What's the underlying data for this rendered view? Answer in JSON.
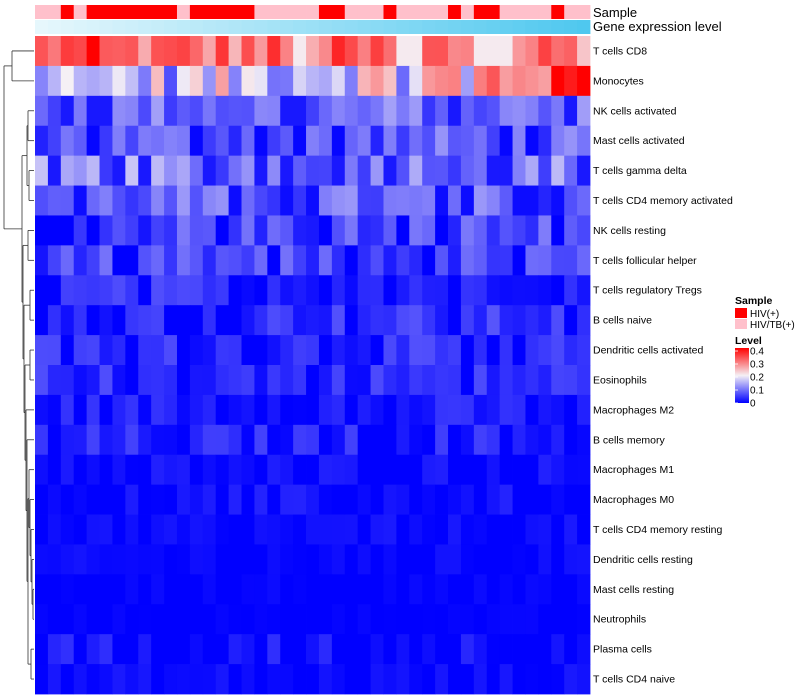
{
  "chart_data": {
    "type": "heatmap",
    "annotations": [
      {
        "name": "Sample",
        "type": "categorical"
      },
      {
        "name": "Gene expression level",
        "type": "continuous",
        "color_low": "#e6f7fc",
        "color_high": "#4fc8ef"
      }
    ],
    "rows": [
      "T cells CD8",
      "Monocytes",
      "NK cells activated",
      "Mast cells activated",
      "T cells gamma delta",
      "T cells CD4 memory activated",
      "NK cells resting",
      "T cells follicular helper",
      "T cells regulatory  Tregs",
      "B cells naive",
      "Dendritic cells activated",
      "Eosinophils",
      "Macrophages M2",
      "B cells memory",
      "Macrophages M1",
      "Macrophages M0",
      "T cells CD4 memory resting",
      "Dendritic cells resting",
      "Mast cells resting",
      "Neutrophils",
      "Plasma cells",
      "T cells CD4 naive"
    ],
    "n_columns": 43,
    "sample_groups": [
      "HIV(+)",
      "HIV/TB(+)"
    ],
    "sample_colors": {
      "HIV(+)": "#ff0000",
      "HIV/TB(+)": "#ffc0cb"
    },
    "sample_pattern": [
      1,
      1,
      0,
      1,
      0,
      0,
      0,
      0,
      0,
      0,
      0,
      1,
      0,
      0,
      0,
      0,
      0,
      1,
      1,
      1,
      1,
      1,
      0,
      0,
      1,
      1,
      1,
      0,
      1,
      1,
      1,
      1,
      0,
      1,
      0,
      0,
      1,
      1,
      1,
      1,
      0,
      1,
      1
    ],
    "legend": {
      "sample_title": "Sample",
      "level_title": "Level",
      "level_ticks": [
        "0.4",
        "0.3",
        "0.2",
        "0.1",
        "0"
      ],
      "level_range": [
        0,
        0.4
      ],
      "color_low": "#0000ff",
      "color_mid": "#f5f0f5",
      "color_high": "#ff0000"
    },
    "row_means": [
      0.31,
      0.17,
      0.095,
      0.08,
      0.11,
      0.085,
      0.065,
      0.06,
      0.04,
      0.045,
      0.04,
      0.04,
      0.025,
      0.03,
      0.012,
      0.012,
      0.008,
      0.006,
      0.004,
      0.002,
      0.015,
      0.008
    ],
    "row_spread": [
      0.07,
      0.1,
      0.05,
      0.05,
      0.06,
      0.05,
      0.05,
      0.04,
      0.03,
      0.03,
      0.03,
      0.03,
      0.025,
      0.03,
      0.02,
      0.02,
      0.015,
      0.012,
      0.008,
      0.005,
      0.03,
      0.015
    ],
    "row_trend": [
      0,
      0.23,
      0,
      0,
      0,
      0,
      0,
      0,
      0,
      0,
      0,
      0,
      0,
      0,
      0,
      0,
      0,
      0,
      0,
      0,
      0,
      0
    ],
    "row_first_cols": [
      [
        0.33,
        0.3,
        0.35,
        0.34,
        0.4
      ],
      [
        0.11,
        0.15,
        0.2,
        0.15,
        0.14
      ],
      [],
      [],
      [],
      [],
      [],
      [],
      [],
      [],
      [],
      [],
      [],
      [],
      [],
      [],
      [],
      [],
      [],
      [],
      [],
      []
    ],
    "gene_expression_range": [
      0,
      1
    ]
  }
}
